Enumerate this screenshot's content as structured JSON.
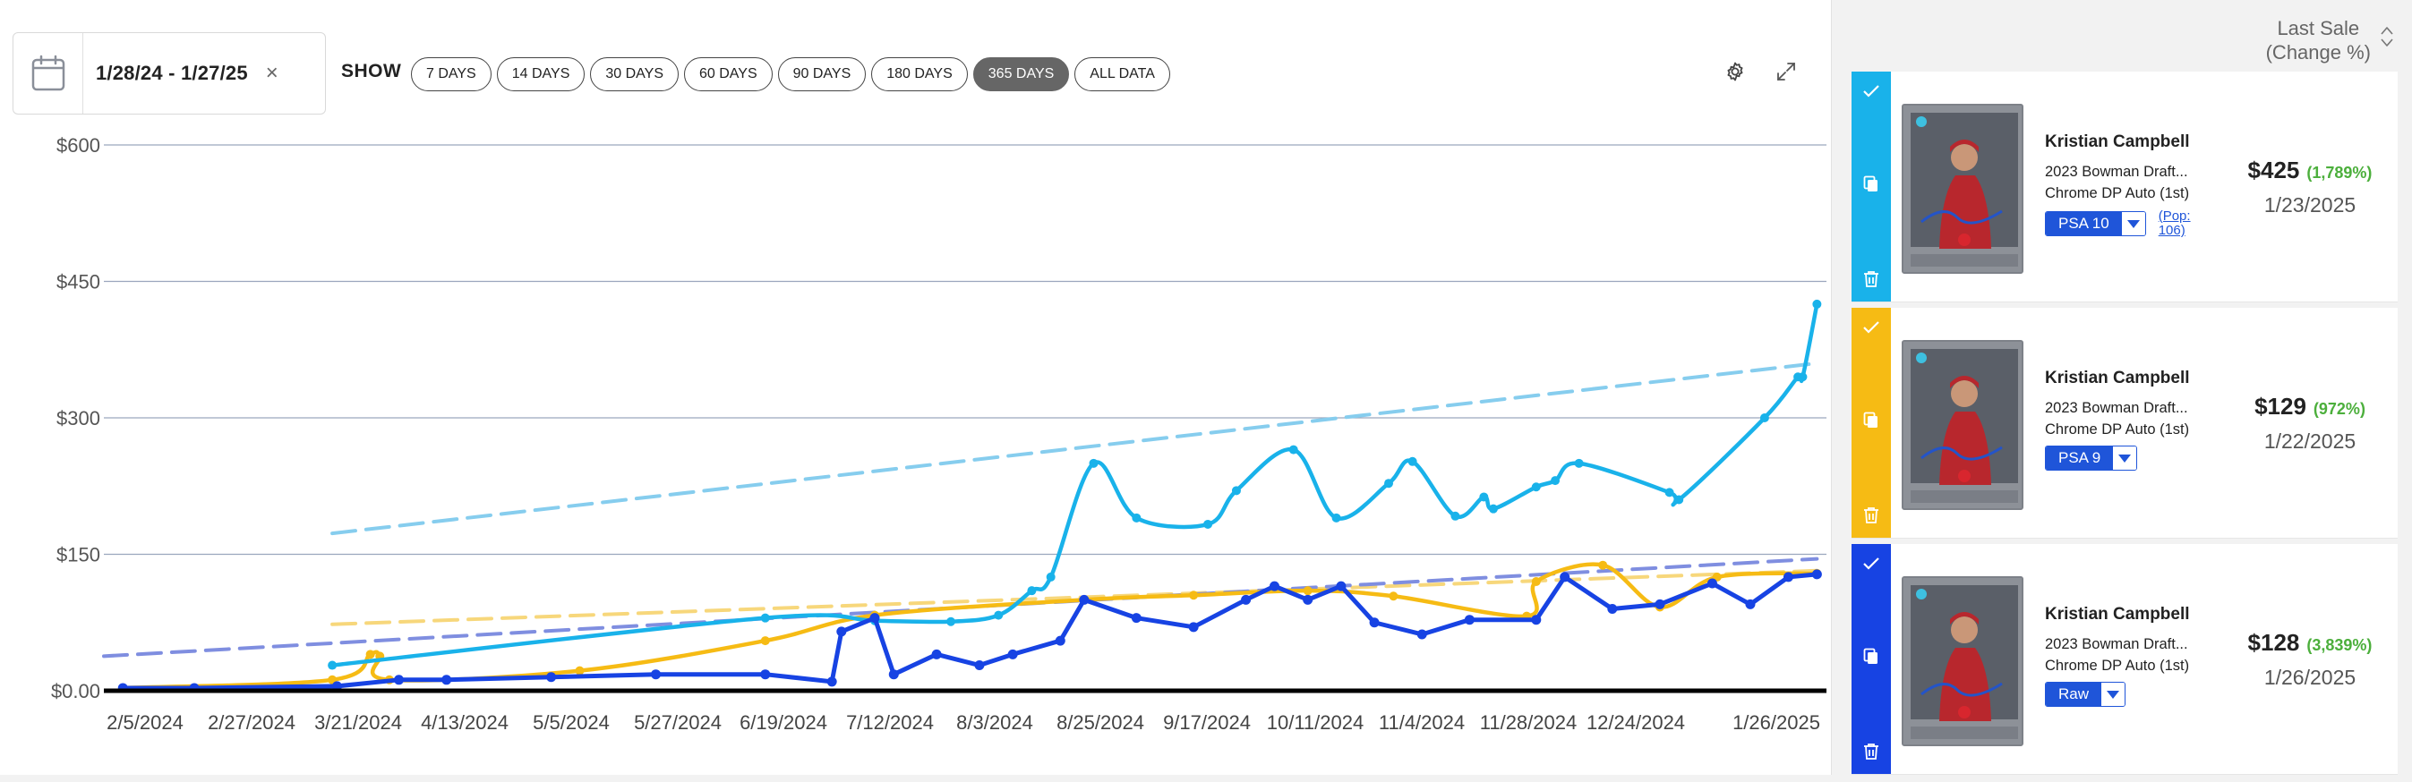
{
  "toolbar": {
    "date_range": "1/28/24 - 1/27/25",
    "clear_symbol": "×",
    "show_label": "SHOW",
    "ranges": [
      "7 DAYS",
      "14 DAYS",
      "30 DAYS",
      "60 DAYS",
      "90 DAYS",
      "180 DAYS",
      "365 DAYS",
      "ALL DATA"
    ],
    "active_range": "365 DAYS",
    "settings_icon": "gear-icon",
    "expand_icon": "expand-icon"
  },
  "chart_data": {
    "type": "line",
    "y_tick_labels": [
      "$600",
      "$450",
      "$300",
      "$150",
      "$0.00"
    ],
    "ylim": [
      0,
      600
    ],
    "x_tick_labels": [
      "2/5/2024",
      "2/27/2024",
      "3/21/2024",
      "4/13/2024",
      "5/5/2024",
      "5/27/2024",
      "6/19/2024",
      "7/12/2024",
      "8/3/2024",
      "8/25/2024",
      "9/17/2024",
      "10/11/2024",
      "11/4/2024",
      "11/28/2024",
      "12/24/2024",
      "1/26/2025"
    ],
    "series": [
      {
        "color": "#19b2ea",
        "points": [
          [
            "3/20/2024",
            28
          ],
          [
            "6/19/2024",
            80
          ],
          [
            "7/12/2024",
            77
          ],
          [
            "7/28/2024",
            76
          ],
          [
            "8/7/2024",
            83
          ],
          [
            "8/14/2024",
            110
          ],
          [
            "8/18/2024",
            125
          ],
          [
            "8/27/2024",
            250
          ],
          [
            "9/5/2024",
            190
          ],
          [
            "9/20/2024",
            183
          ],
          [
            "9/26/2024",
            220
          ],
          [
            "10/8/2024",
            265
          ],
          [
            "10/17/2024",
            190
          ],
          [
            "10/28/2024",
            228
          ],
          [
            "11/2/2024",
            252
          ],
          [
            "11/11/2024",
            192
          ],
          [
            "11/17/2024",
            213
          ],
          [
            "11/19/2024",
            200
          ],
          [
            "11/28/2024",
            224
          ],
          [
            "12/2/2024",
            231
          ],
          [
            "12/7/2024",
            250
          ],
          [
            "12/26/2024",
            218
          ],
          [
            "12/28/2024",
            210
          ],
          [
            "1/15/2025",
            300
          ],
          [
            "1/22/2025",
            345
          ],
          [
            "1/23/2025",
            345
          ],
          [
            "1/26/2025",
            425
          ]
        ]
      },
      {
        "color": "#f6bb14",
        "points": [
          [
            "2/5/2024",
            3
          ],
          [
            "3/20/2024",
            12
          ],
          [
            "3/28/2024",
            40
          ],
          [
            "3/30/2024",
            38
          ],
          [
            "4/1/2024",
            12
          ],
          [
            "5/11/2024",
            22
          ],
          [
            "6/19/2024",
            55
          ],
          [
            "7/12/2024",
            83
          ],
          [
            "8/25/2024",
            100
          ],
          [
            "9/17/2024",
            105
          ],
          [
            "10/11/2024",
            110
          ],
          [
            "10/29/2024",
            104
          ],
          [
            "11/26/2024",
            82
          ],
          [
            "11/28/2024",
            120
          ],
          [
            "12/12/2024",
            138
          ],
          [
            "12/24/2024",
            92
          ],
          [
            "1/5/2025",
            125
          ],
          [
            "1/26/2025",
            129
          ]
        ]
      },
      {
        "color": "#1743e3",
        "points": [
          [
            "2/5/2024",
            3
          ],
          [
            "2/20/2024",
            3
          ],
          [
            "3/21/2024",
            5
          ],
          [
            "4/3/2024",
            12
          ],
          [
            "4/13/2024",
            12
          ],
          [
            "5/5/2024",
            15
          ],
          [
            "5/27/2024",
            18
          ],
          [
            "6/19/2024",
            18
          ],
          [
            "7/3/2024",
            10
          ],
          [
            "7/5/2024",
            65
          ],
          [
            "7/12/2024",
            80
          ],
          [
            "7/16/2024",
            18
          ],
          [
            "7/25/2024",
            40
          ],
          [
            "8/3/2024",
            28
          ],
          [
            "8/10/2024",
            40
          ],
          [
            "8/20/2024",
            55
          ],
          [
            "8/25/2024",
            100
          ],
          [
            "9/5/2024",
            80
          ],
          [
            "9/17/2024",
            70
          ],
          [
            "9/28/2024",
            100
          ],
          [
            "10/4/2024",
            115
          ],
          [
            "10/11/2024",
            100
          ],
          [
            "10/18/2024",
            115
          ],
          [
            "10/25/2024",
            75
          ],
          [
            "11/4/2024",
            62
          ],
          [
            "11/14/2024",
            78
          ],
          [
            "11/28/2024",
            78
          ],
          [
            "12/4/2024",
            125
          ],
          [
            "12/14/2024",
            90
          ],
          [
            "12/24/2024",
            95
          ],
          [
            "1/4/2025",
            118
          ],
          [
            "1/12/2025",
            95
          ],
          [
            "1/20/2025",
            125
          ],
          [
            "1/26/2025",
            128
          ]
        ]
      }
    ],
    "trendlines": [
      {
        "color": "#86cdee",
        "points": [
          [
            "3/20/2024",
            173
          ],
          [
            "1/26/2025",
            360
          ]
        ]
      },
      {
        "color": "#f7d77b",
        "points": [
          [
            "3/20/2024",
            73
          ],
          [
            "1/26/2025",
            132
          ]
        ]
      },
      {
        "color": "#7f8ee0",
        "points": [
          [
            "2/1/2024",
            38
          ],
          [
            "1/26/2025",
            145
          ]
        ]
      }
    ]
  },
  "sidebar": {
    "header_line1": "Last Sale",
    "header_line2": "(Change %)",
    "sort_icon": "sort-icon",
    "cards": [
      {
        "stripe_color": "#19b2ea",
        "player": "Kristian Campbell",
        "desc_line1": "2023 Bowman Draft...",
        "desc_line2": "Chrome DP Auto (1st)",
        "grade": "PSA 10",
        "pop_line1": "(Pop:",
        "pop_line2": "106)",
        "price": "$425",
        "change": "(1,789%)",
        "date": "1/23/2025"
      },
      {
        "stripe_color": "#f6bb14",
        "player": "Kristian Campbell",
        "desc_line1": "2023 Bowman Draft...",
        "desc_line2": "Chrome DP Auto (1st)",
        "grade": "PSA 9",
        "price": "$129",
        "change": "(972%)",
        "date": "1/22/2025"
      },
      {
        "stripe_color": "#1743e3",
        "player": "Kristian Campbell",
        "desc_line1": "2023 Bowman Draft...",
        "desc_line2": "Chrome DP Auto (1st)",
        "grade": "Raw",
        "price": "$128",
        "change": "(3,839%)",
        "date": "1/26/2025"
      }
    ]
  }
}
